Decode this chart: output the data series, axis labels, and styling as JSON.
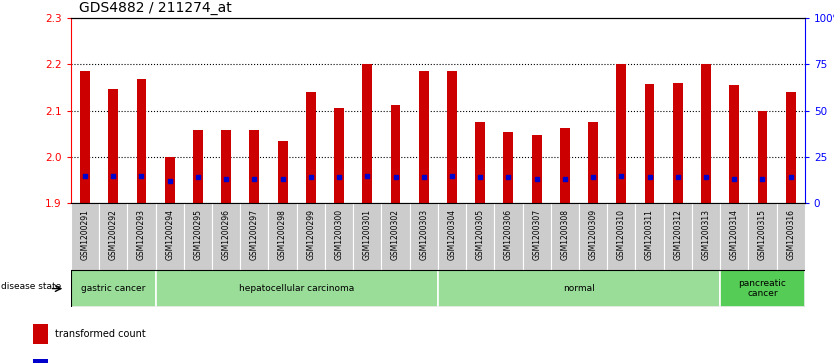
{
  "title": "GDS4882 / 211274_at",
  "samples": [
    "GSM1200291",
    "GSM1200292",
    "GSM1200293",
    "GSM1200294",
    "GSM1200295",
    "GSM1200296",
    "GSM1200297",
    "GSM1200298",
    "GSM1200299",
    "GSM1200300",
    "GSM1200301",
    "GSM1200302",
    "GSM1200303",
    "GSM1200304",
    "GSM1200305",
    "GSM1200306",
    "GSM1200307",
    "GSM1200308",
    "GSM1200309",
    "GSM1200310",
    "GSM1200311",
    "GSM1200312",
    "GSM1200313",
    "GSM1200314",
    "GSM1200315",
    "GSM1200316"
  ],
  "transformed_count": [
    2.185,
    2.147,
    2.168,
    2.0,
    2.058,
    2.058,
    2.058,
    2.035,
    2.14,
    2.105,
    2.2,
    2.113,
    2.185,
    2.185,
    2.075,
    2.055,
    2.047,
    2.063,
    2.075,
    2.2,
    2.157,
    2.16,
    2.2,
    2.155,
    2.1,
    2.14
  ],
  "percentile_rank": [
    15,
    15,
    15,
    12,
    14,
    13,
    13,
    13,
    14,
    14,
    15,
    14,
    14,
    15,
    14,
    14,
    13,
    13,
    14,
    15,
    14,
    14,
    14,
    13,
    13,
    14
  ],
  "ylim_left": [
    1.9,
    2.3
  ],
  "ylim_right": [
    0,
    100
  ],
  "yticks_left": [
    1.9,
    2.0,
    2.1,
    2.2,
    2.3
  ],
  "yticks_right": [
    0,
    25,
    50,
    75,
    100
  ],
  "ytick_labels_right": [
    "0",
    "25",
    "50",
    "75",
    "100%"
  ],
  "bar_color": "#cc0000",
  "marker_color": "#0000cc",
  "bar_bottom": 1.9,
  "disease_groups": [
    {
      "label": "gastric cancer",
      "start": 0,
      "end": 3
    },
    {
      "label": "hepatocellular carcinoma",
      "start": 3,
      "end": 13
    },
    {
      "label": "normal",
      "start": 13,
      "end": 23
    },
    {
      "label": "pancreatic\ncancer",
      "start": 23,
      "end": 26
    }
  ],
  "bar_width": 0.35,
  "light_green": "#99dd99",
  "bright_green": "#55cc55",
  "tick_bg_color": "#cccccc",
  "title_fontsize": 10,
  "axis_fontsize": 7.5,
  "label_fontsize": 7.5,
  "tick_fontsize": 5.5
}
